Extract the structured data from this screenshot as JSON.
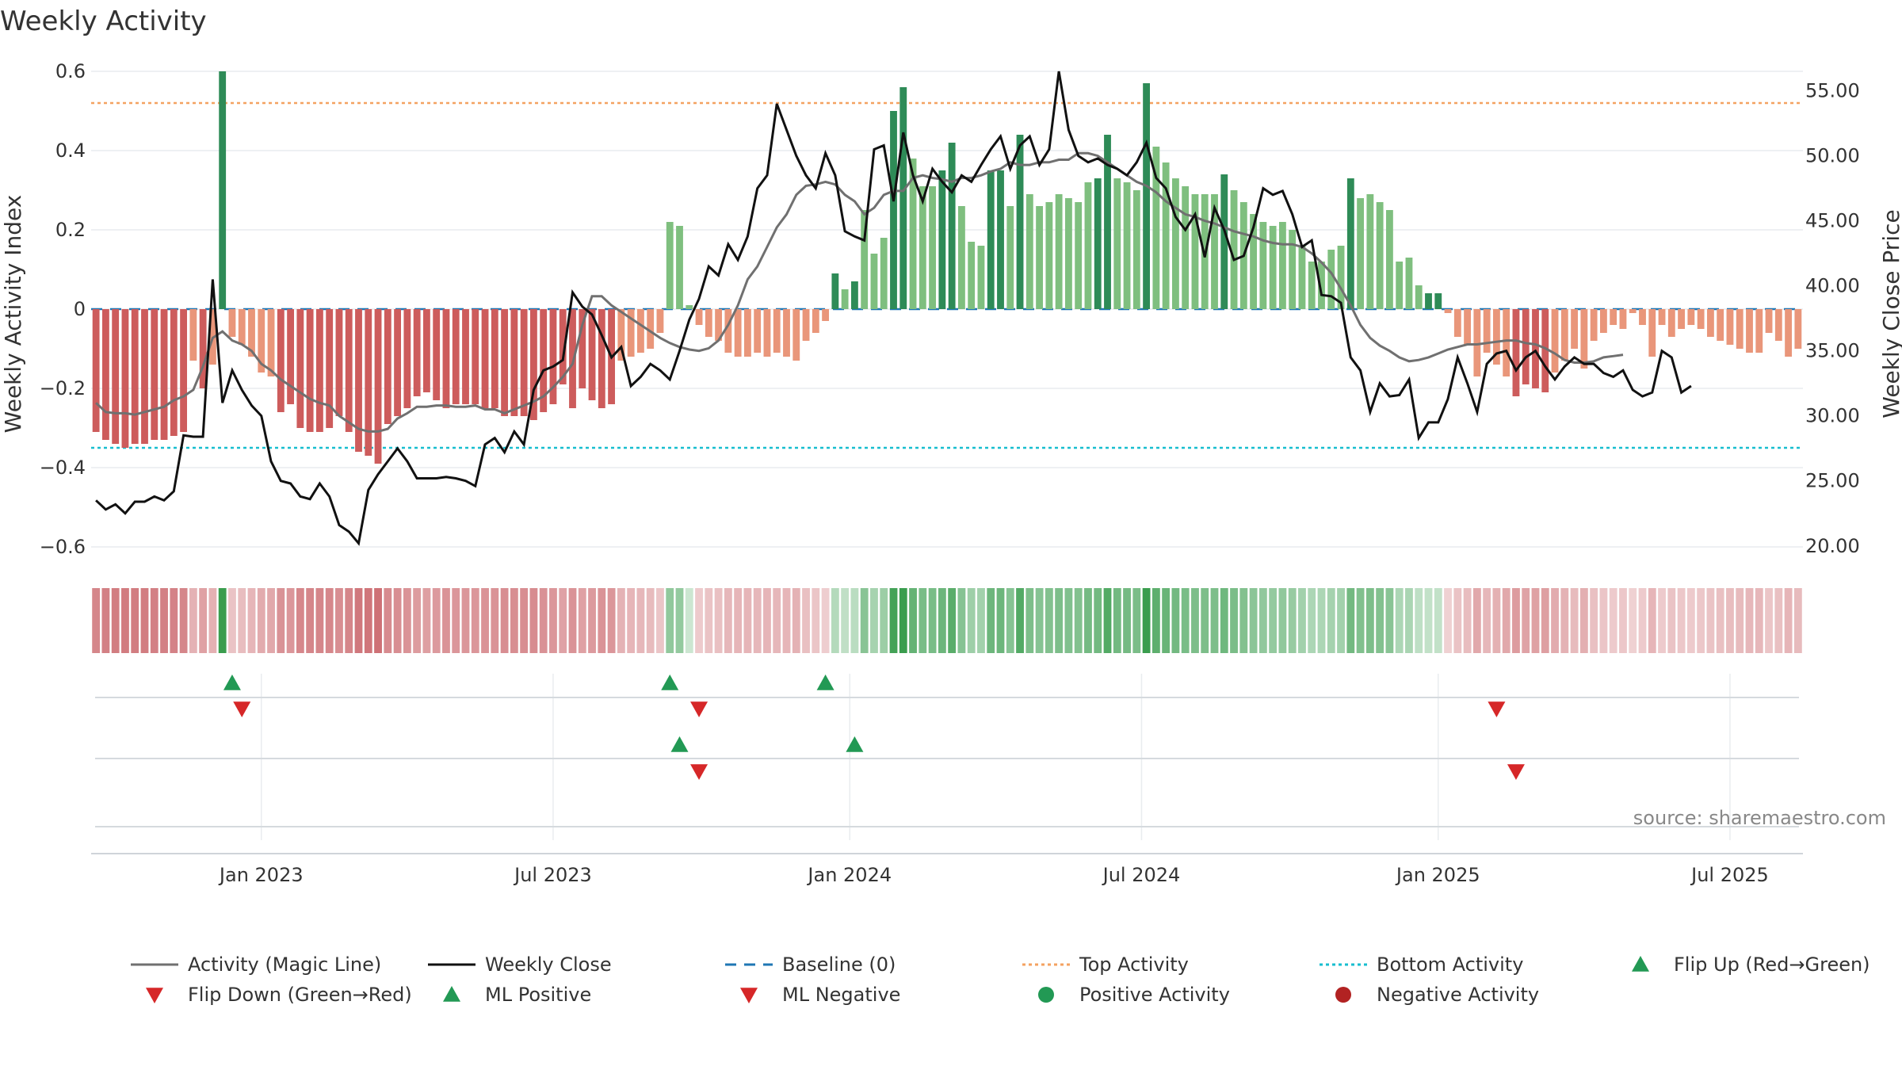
{
  "chart_data": {
    "type": "bar",
    "title": "Weekly Activity",
    "ylabel_left": "Weekly Activity Index",
    "ylabel_right": "Weekly Close Price",
    "source": "source: sharemaestro.com",
    "ylim_left": [
      -0.65,
      0.6
    ],
    "ylim_right": [
      18.4,
      56.5
    ],
    "left_ticks": [
      {
        "value": 0.6,
        "label": "0.6"
      },
      {
        "value": 0.4,
        "label": "0.4"
      },
      {
        "value": 0.2,
        "label": "0.2"
      },
      {
        "value": 0,
        "label": "0"
      },
      {
        "value": -0.2,
        "label": "−0.2"
      },
      {
        "value": -0.4,
        "label": "−0.4"
      },
      {
        "value": -0.6,
        "label": "−0.6"
      }
    ],
    "right_ticks": [
      {
        "value": 55,
        "label": "55.00"
      },
      {
        "value": 50,
        "label": "50.00"
      },
      {
        "value": 45,
        "label": "45.00"
      },
      {
        "value": 40,
        "label": "40.00"
      },
      {
        "value": 35,
        "label": "35.00"
      },
      {
        "value": 30,
        "label": "30.00"
      },
      {
        "value": 25,
        "label": "25.00"
      },
      {
        "value": 20,
        "label": "20.00"
      }
    ],
    "x_ticks": [
      {
        "week": 17.5,
        "label": "Jan 2023"
      },
      {
        "week": 47.5,
        "label": "Jul 2023"
      },
      {
        "week": 78,
        "label": "Jan 2024"
      },
      {
        "week": 108,
        "label": "Jul 2024"
      },
      {
        "week": 138.5,
        "label": "Jan 2025"
      },
      {
        "week": 168.5,
        "label": "Jul 2025"
      }
    ],
    "top_activity": 0.52,
    "bottom_activity": -0.35,
    "baseline": 0,
    "activity": [
      -0.31,
      -0.33,
      -0.34,
      -0.35,
      -0.34,
      -0.34,
      -0.33,
      -0.33,
      -0.32,
      -0.31,
      -0.13,
      -0.2,
      -0.14,
      0.6,
      -0.07,
      -0.09,
      -0.12,
      -0.16,
      -0.17,
      -0.26,
      -0.24,
      -0.3,
      -0.31,
      -0.31,
      -0.3,
      -0.27,
      -0.31,
      -0.36,
      -0.37,
      -0.39,
      -0.29,
      -0.27,
      -0.25,
      -0.22,
      -0.21,
      -0.23,
      -0.25,
      -0.24,
      -0.24,
      -0.24,
      -0.25,
      -0.25,
      -0.27,
      -0.27,
      -0.27,
      -0.28,
      -0.26,
      -0.24,
      -0.19,
      -0.25,
      -0.2,
      -0.23,
      -0.25,
      -0.24,
      -0.13,
      -0.12,
      -0.11,
      -0.1,
      -0.06,
      0.22,
      0.21,
      0.01,
      -0.04,
      -0.07,
      -0.08,
      -0.11,
      -0.12,
      -0.12,
      -0.11,
      -0.12,
      -0.11,
      -0.12,
      -0.13,
      -0.08,
      -0.06,
      -0.03,
      0.09,
      0.05,
      0.07,
      0.25,
      0.14,
      0.18,
      0.5,
      0.56,
      0.38,
      0.31,
      0.31,
      0.35,
      0.42,
      0.26,
      0.17,
      0.16,
      0.35,
      0.35,
      0.26,
      0.44,
      0.29,
      0.26,
      0.27,
      0.29,
      0.28,
      0.27,
      0.32,
      0.33,
      0.44,
      0.33,
      0.32,
      0.3,
      0.57,
      0.41,
      0.37,
      0.33,
      0.31,
      0.29,
      0.29,
      0.29,
      0.34,
      0.3,
      0.27,
      0.24,
      0.22,
      0.21,
      0.22,
      0.2,
      0.16,
      0.12,
      0.12,
      0.15,
      0.16,
      0.33,
      0.28,
      0.29,
      0.27,
      0.25,
      0.12,
      0.13,
      0.06,
      0.04,
      0.04,
      -0.01,
      -0.07,
      -0.09,
      -0.17,
      -0.11,
      -0.14,
      -0.17,
      -0.22,
      -0.19,
      -0.2,
      -0.21,
      -0.16,
      -0.13,
      -0.1,
      -0.15,
      -0.08,
      -0.06,
      -0.04,
      -0.05,
      -0.01,
      -0.04,
      -0.12,
      -0.04,
      -0.07,
      -0.05,
      -0.04,
      -0.05,
      -0.07,
      -0.08,
      -0.09,
      -0.1,
      -0.11,
      -0.11,
      -0.06,
      -0.08,
      -0.12,
      -0.1
    ],
    "close": [
      23.5,
      22.8,
      23.2,
      22.5,
      23.4,
      23.4,
      23.8,
      23.5,
      24.2,
      28.5,
      28.4,
      28.4,
      40.5,
      31,
      33.5,
      32,
      30.8,
      30,
      26.5,
      25,
      24.8,
      23.8,
      23.6,
      24.8,
      23.8,
      21.6,
      21.1,
      20.2,
      24.3,
      25.5,
      26.5,
      27.5,
      26.5,
      25.2,
      25.2,
      25.2,
      25.3,
      25.2,
      25,
      24.6,
      27.8,
      28.3,
      27.2,
      28.8,
      27.8,
      32,
      33.5,
      33.8,
      34.3,
      39.5,
      38.4,
      37.8,
      36.2,
      34.5,
      35.3,
      32.3,
      33,
      34,
      33.5,
      32.8,
      35,
      37.4,
      39,
      41.5,
      40.8,
      43.2,
      42,
      43.8,
      47.5,
      48.5,
      54,
      52,
      50,
      48.5,
      47.5,
      50.2,
      48.5,
      44.2,
      43.8,
      43.5,
      50.5,
      50.8,
      46.5,
      51.8,
      48.5,
      46.5,
      49,
      48,
      47.2,
      48.5,
      48,
      49.3,
      50.5,
      51.5,
      49,
      50.8,
      51.5,
      49.3,
      50.5,
      56.5,
      52,
      50,
      49.5,
      49.8,
      49.3,
      49,
      48.5,
      49.5,
      51,
      48.3,
      47.5,
      45.3,
      44.3,
      45.5,
      42.2,
      46,
      44.3,
      42,
      42.3,
      44.5,
      47.5,
      47,
      47.3,
      45.5,
      43,
      43.5,
      39.3,
      39.2,
      38.7,
      34.5,
      33.5,
      30.3,
      32.5,
      31.5,
      31.6,
      32.8,
      28.3,
      29.5,
      29.5,
      31.3,
      34.5,
      32.5,
      30.3,
      34,
      34.8,
      35,
      33.5,
      34.5,
      35,
      33.8,
      32.8,
      33.8,
      34.5,
      34,
      34,
      33.3,
      33,
      33.5,
      32,
      31.5,
      31.8,
      35,
      34.5,
      31.8,
      32.3
    ],
    "magic_line": [
      31,
      30.3,
      30.2,
      30.2,
      30.1,
      30.3,
      30.5,
      30.7,
      31.2,
      31.5,
      32,
      33.8,
      36,
      36.5,
      35.8,
      35.5,
      35,
      34,
      33.5,
      32.8,
      32.3,
      31.8,
      31.3,
      31,
      30.8,
      30,
      29.5,
      29,
      28.8,
      28.8,
      29,
      29.8,
      30.2,
      30.7,
      30.7,
      30.8,
      30.8,
      30.7,
      30.7,
      30.8,
      30.5,
      30.5,
      30.2,
      30.5,
      30.8,
      31.1,
      31.5,
      32.2,
      33,
      34,
      37,
      39.2,
      39.2,
      38.5,
      38,
      37.5,
      37,
      36.5,
      36,
      35.6,
      35.3,
      35.1,
      35,
      35.2,
      35.8,
      37,
      38.5,
      40.5,
      41.5,
      43,
      44.5,
      45.5,
      47,
      47.7,
      47.8,
      48,
      47.8,
      47,
      46.5,
      45.5,
      46,
      47,
      47.3,
      47.3,
      48.3,
      48.5,
      48.3,
      48.2,
      48,
      48.3,
      48.3,
      48.5,
      48.8,
      49,
      49.5,
      49.3,
      49.3,
      49.5,
      49.5,
      49.7,
      49.7,
      50.2,
      50.2,
      50,
      49.5,
      49,
      48.5,
      48,
      47.7,
      47.2,
      46.5,
      46,
      45.5,
      45.3,
      45,
      44.8,
      44.5,
      44.2,
      44,
      43.8,
      43.5,
      43.3,
      43.2,
      43.2,
      43,
      42.5,
      41.8,
      41,
      39.8,
      38.5,
      37,
      36,
      35.4,
      35,
      34.5,
      34.2,
      34.3,
      34.5,
      34.8,
      35.1,
      35.3,
      35.5,
      35.5,
      35.6,
      35.7,
      35.8,
      35.8,
      35.6,
      35.5,
      35.2,
      34.8,
      34.3,
      34.1,
      34.1,
      34.2,
      34.5,
      34.6,
      34.7
    ],
    "flip_up": [
      14,
      59,
      75
    ],
    "flip_down": [
      15,
      62,
      144
    ],
    "ml_positive": [
      60,
      78
    ],
    "ml_negative": [
      62,
      146
    ],
    "colors": {
      "pos_strong": "#2e8b57",
      "pos_weak": "#7fbf7f",
      "neg_strong": "#cd5c5c",
      "neg_weak": "#e9967a",
      "magic_line": "#707070",
      "close": "#111111",
      "baseline": "#1f77b4",
      "top": "#f4a261",
      "bottom": "#17becf",
      "marker_up": "#229954",
      "marker_down": "#d62728",
      "negative_dot": "#b22222"
    },
    "legend": [
      {
        "kind": "line",
        "color": "#707070",
        "dash": "",
        "label": "Activity (Magic Line)"
      },
      {
        "kind": "line",
        "color": "#111111",
        "dash": "",
        "label": "Weekly Close"
      },
      {
        "kind": "line",
        "color": "#1f77b4",
        "dash": "14,10",
        "label": "Baseline (0)"
      },
      {
        "kind": "line",
        "color": "#f4a261",
        "dash": "4,4",
        "label": "Top Activity"
      },
      {
        "kind": "line",
        "color": "#17becf",
        "dash": "4,4",
        "label": "Bottom Activity"
      },
      {
        "kind": "tri-up",
        "color": "#229954",
        "label": "Flip Up (Red→Green)"
      },
      {
        "kind": "tri-down",
        "color": "#d62728",
        "label": "Flip Down (Green→Red)"
      },
      {
        "kind": "tri-up",
        "color": "#229954",
        "label": "ML Positive"
      },
      {
        "kind": "tri-down",
        "color": "#d62728",
        "label": "ML Negative"
      },
      {
        "kind": "dot",
        "color": "#229954",
        "label": "Positive Activity"
      },
      {
        "kind": "dot",
        "color": "#b22222",
        "label": "Negative Activity"
      }
    ]
  }
}
